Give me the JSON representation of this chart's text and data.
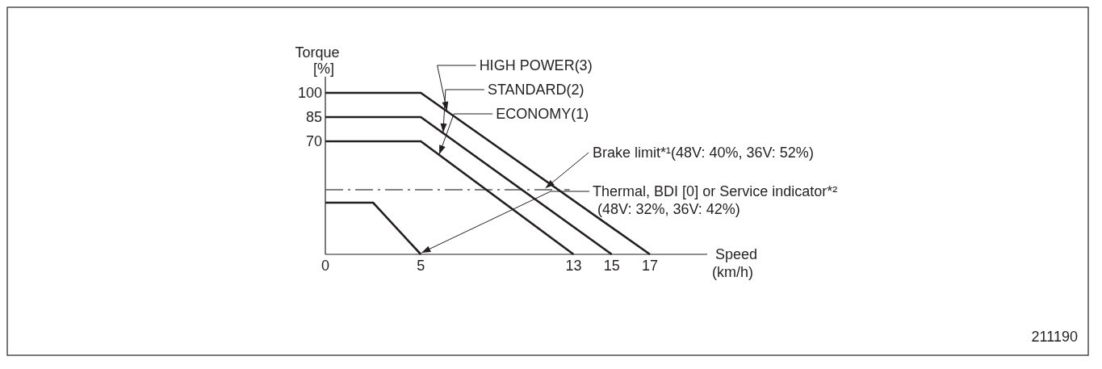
{
  "chart_data": {
    "type": "line",
    "xlabel": "Speed (km/h)",
    "ylabel": "Torque [%]",
    "xlim": [
      0,
      20
    ],
    "xticks": [
      0,
      5,
      13,
      15,
      17
    ],
    "ylim": [
      0,
      110
    ],
    "yticks": [
      70,
      85,
      100
    ],
    "series": [
      {
        "name": "HIGH POWER(3)",
        "color": "#231f20",
        "x": [
          0,
          5,
          17
        ],
        "values": [
          100,
          100,
          0
        ]
      },
      {
        "name": "STANDARD(2)",
        "color": "#231f20",
        "x": [
          0,
          5,
          15
        ],
        "values": [
          85,
          85,
          0
        ]
      },
      {
        "name": "ECONOMY(1)",
        "color": "#231f20",
        "x": [
          0,
          5,
          13
        ],
        "values": [
          70,
          70,
          0
        ]
      },
      {
        "color": "#231f20",
        "x": [
          0,
          2.5,
          5
        ],
        "values": [
          32,
          32,
          0
        ]
      }
    ],
    "ref_lines": [
      {
        "axis": "y",
        "value": 40,
        "label": "Brake limit*¹(48V: 40%, 36V: 52%)",
        "color": "#58595b",
        "line_style": "dashed"
      }
    ],
    "annotations": [
      {
        "text": "Thermal, BDI [0] or Service indicator*² (48V: 32%, 36V: 42%)",
        "x": 5,
        "y": 0
      },
      "211190"
    ],
    "grid": false,
    "marker": "none",
    "line_style": "solid"
  }
}
